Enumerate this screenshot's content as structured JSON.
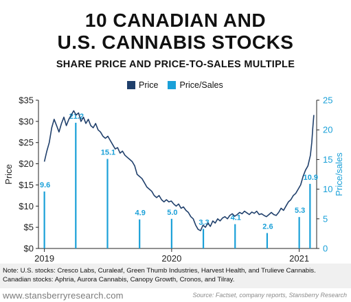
{
  "header": {
    "title_line1": "10 CANADIAN AND",
    "title_line2": "U.S. CANNABIS STOCKS",
    "subtitle": "SHARE PRICE AND PRICE-TO-SALES MULTIPLE"
  },
  "colors": {
    "price": "#1f3f6b",
    "ps": "#1aa0d8",
    "axis": "#222222",
    "grid": "#dddddd"
  },
  "chart_data": {
    "type": "line",
    "title": "10 CANADIAN AND U.S. CANNABIS STOCKS",
    "subtitle": "SHARE PRICE AND PRICE-TO-SALES MULTIPLE",
    "legend": {
      "position": "top-center",
      "entries": [
        "Price",
        "Price/Sales"
      ]
    },
    "xlabel": "",
    "ylabel": "Price",
    "y2label": "Price/sales",
    "xlim": [
      "2018-12-15",
      "2021-02-20"
    ],
    "ylim": [
      0,
      35
    ],
    "y2lim": [
      0,
      25
    ],
    "x_ticks": [
      "2019",
      "2020",
      "2021"
    ],
    "y_ticks": [
      "$0",
      "$5",
      "$10",
      "$15",
      "$20",
      "$25",
      "$30",
      "$35"
    ],
    "y2_ticks": [
      "0",
      "5",
      "10",
      "15",
      "20",
      "25"
    ],
    "series": [
      {
        "name": "Price",
        "axis": "left",
        "points": [
          [
            "2019-01-01",
            20.5
          ],
          [
            "2019-01-08",
            23.0
          ],
          [
            "2019-01-15",
            25.0
          ],
          [
            "2019-01-22",
            28.5
          ],
          [
            "2019-01-29",
            30.5
          ],
          [
            "2019-02-05",
            29.0
          ],
          [
            "2019-02-12",
            27.5
          ],
          [
            "2019-02-19",
            29.5
          ],
          [
            "2019-02-26",
            31.0
          ],
          [
            "2019-03-05",
            29.0
          ],
          [
            "2019-03-12",
            30.5
          ],
          [
            "2019-03-19",
            31.5
          ],
          [
            "2019-03-26",
            32.5
          ],
          [
            "2019-04-02",
            31.5
          ],
          [
            "2019-04-09",
            32.0
          ],
          [
            "2019-04-16",
            30.0
          ],
          [
            "2019-04-23",
            31.0
          ],
          [
            "2019-04-30",
            29.5
          ],
          [
            "2019-05-07",
            30.5
          ],
          [
            "2019-05-14",
            29.0
          ],
          [
            "2019-05-21",
            28.5
          ],
          [
            "2019-05-28",
            29.5
          ],
          [
            "2019-06-04",
            28.0
          ],
          [
            "2019-06-11",
            27.5
          ],
          [
            "2019-06-18",
            26.5
          ],
          [
            "2019-06-25",
            26.0
          ],
          [
            "2019-07-02",
            26.5
          ],
          [
            "2019-07-09",
            25.5
          ],
          [
            "2019-07-16",
            24.5
          ],
          [
            "2019-07-23",
            23.5
          ],
          [
            "2019-07-30",
            23.8
          ],
          [
            "2019-08-06",
            22.5
          ],
          [
            "2019-08-13",
            23.0
          ],
          [
            "2019-08-20",
            22.0
          ],
          [
            "2019-08-27",
            21.5
          ],
          [
            "2019-09-03",
            21.0
          ],
          [
            "2019-09-10",
            20.5
          ],
          [
            "2019-09-17",
            19.5
          ],
          [
            "2019-09-24",
            17.5
          ],
          [
            "2019-10-01",
            17.0
          ],
          [
            "2019-10-08",
            16.5
          ],
          [
            "2019-10-15",
            15.5
          ],
          [
            "2019-10-22",
            14.5
          ],
          [
            "2019-10-29",
            14.0
          ],
          [
            "2019-11-05",
            13.5
          ],
          [
            "2019-11-12",
            12.5
          ],
          [
            "2019-11-19",
            12.0
          ],
          [
            "2019-11-26",
            12.5
          ],
          [
            "2019-12-03",
            11.5
          ],
          [
            "2019-12-10",
            11.0
          ],
          [
            "2019-12-17",
            11.5
          ],
          [
            "2019-12-24",
            11.0
          ],
          [
            "2019-12-31",
            11.2
          ],
          [
            "2020-01-07",
            10.5
          ],
          [
            "2020-01-14",
            10.0
          ],
          [
            "2020-01-21",
            10.5
          ],
          [
            "2020-01-28",
            9.5
          ],
          [
            "2020-02-04",
            9.8
          ],
          [
            "2020-02-11",
            9.0
          ],
          [
            "2020-02-18",
            8.5
          ],
          [
            "2020-02-25",
            7.5
          ],
          [
            "2020-03-03",
            7.0
          ],
          [
            "2020-03-10",
            5.5
          ],
          [
            "2020-03-17",
            4.5
          ],
          [
            "2020-03-24",
            4.2
          ],
          [
            "2020-03-31",
            5.5
          ],
          [
            "2020-04-07",
            5.0
          ],
          [
            "2020-04-14",
            6.0
          ],
          [
            "2020-04-21",
            5.2
          ],
          [
            "2020-04-28",
            6.5
          ],
          [
            "2020-05-05",
            6.0
          ],
          [
            "2020-05-12",
            7.0
          ],
          [
            "2020-05-19",
            6.5
          ],
          [
            "2020-05-26",
            7.2
          ],
          [
            "2020-06-02",
            7.5
          ],
          [
            "2020-06-09",
            7.0
          ],
          [
            "2020-06-16",
            7.8
          ],
          [
            "2020-06-23",
            8.2
          ],
          [
            "2020-06-30",
            7.6
          ],
          [
            "2020-07-07",
            8.0
          ],
          [
            "2020-07-14",
            8.5
          ],
          [
            "2020-07-21",
            8.2
          ],
          [
            "2020-07-28",
            8.8
          ],
          [
            "2020-08-04",
            8.4
          ],
          [
            "2020-08-11",
            8.0
          ],
          [
            "2020-08-18",
            8.6
          ],
          [
            "2020-08-25",
            8.3
          ],
          [
            "2020-09-01",
            8.8
          ],
          [
            "2020-09-08",
            8.0
          ],
          [
            "2020-09-15",
            8.2
          ],
          [
            "2020-09-22",
            7.8
          ],
          [
            "2020-09-29",
            7.5
          ],
          [
            "2020-10-06",
            8.0
          ],
          [
            "2020-10-13",
            8.5
          ],
          [
            "2020-10-20",
            8.0
          ],
          [
            "2020-10-27",
            7.8
          ],
          [
            "2020-11-03",
            8.5
          ],
          [
            "2020-11-10",
            9.5
          ],
          [
            "2020-11-17",
            9.0
          ],
          [
            "2020-11-24",
            10.0
          ],
          [
            "2020-12-01",
            11.0
          ],
          [
            "2020-12-08",
            11.5
          ],
          [
            "2020-12-15",
            12.5
          ],
          [
            "2020-12-22",
            13.0
          ],
          [
            "2020-12-29",
            14.0
          ],
          [
            "2021-01-05",
            15.0
          ],
          [
            "2021-01-12",
            17.0
          ],
          [
            "2021-01-19",
            18.5
          ],
          [
            "2021-01-26",
            19.5
          ],
          [
            "2021-02-02",
            22.0
          ],
          [
            "2021-02-06",
            25.0
          ],
          [
            "2021-02-09",
            28.5
          ],
          [
            "2021-02-12",
            31.5
          ]
        ]
      },
      {
        "name": "Price/Sales",
        "axis": "right",
        "type": "stem",
        "labels": [
          "9.6",
          "21.2",
          "15.1",
          "4.9",
          "5.0",
          "3.3",
          "4.1",
          "2.6",
          "5.3",
          "10.9"
        ],
        "points": [
          [
            "2019-01-01",
            9.6
          ],
          [
            "2019-04-01",
            21.2
          ],
          [
            "2019-07-01",
            15.1
          ],
          [
            "2019-10-01",
            4.9
          ],
          [
            "2020-01-01",
            5.0
          ],
          [
            "2020-04-01",
            3.3
          ],
          [
            "2020-07-01",
            4.1
          ],
          [
            "2020-10-01",
            2.6
          ],
          [
            "2021-01-01",
            5.3
          ],
          [
            "2021-02-01",
            10.9
          ]
        ]
      }
    ]
  },
  "note": {
    "line1": "Note: U.S. stocks: Cresco Labs, Curaleaf, Green Thumb Industries, Harvest Health, and Trulieve Cannabis.",
    "line2": "Canadian stocks: Aphria, Aurora Cannabis, Canopy Growth, Cronos, and Tilray."
  },
  "footer": {
    "url": "www.stansberryresearch.com",
    "source": "Source: Factset, company reports, Stansberry Research"
  }
}
